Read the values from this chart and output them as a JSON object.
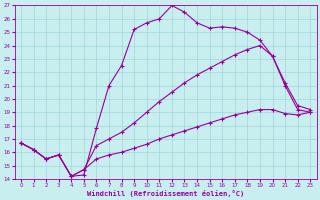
{
  "xlabel": "Windchill (Refroidissement éolien,°C)",
  "bg_color": "#c8eef0",
  "line_color": "#990099",
  "grid_color": "#a0d8d8",
  "xlim": [
    -0.5,
    23.5
  ],
  "ylim": [
    14,
    27
  ],
  "xticks": [
    0,
    1,
    2,
    3,
    4,
    5,
    6,
    7,
    8,
    9,
    10,
    11,
    12,
    13,
    14,
    15,
    16,
    17,
    18,
    19,
    20,
    21,
    22,
    23
  ],
  "yticks": [
    14,
    15,
    16,
    17,
    18,
    19,
    20,
    21,
    22,
    23,
    24,
    25,
    26,
    27
  ],
  "series1_x": [
    0,
    1,
    2,
    3,
    4,
    5,
    6,
    7,
    8,
    9,
    10,
    11,
    12,
    13,
    14,
    15,
    16,
    17,
    18,
    19,
    20,
    21,
    22,
    23
  ],
  "series1_y": [
    16.7,
    16.2,
    15.5,
    15.8,
    14.2,
    14.3,
    17.8,
    21.0,
    22.5,
    25.2,
    25.7,
    26.0,
    27.0,
    26.5,
    25.7,
    25.3,
    25.4,
    25.3,
    25.0,
    24.4,
    23.2,
    21.2,
    19.5,
    19.2
  ],
  "series2_x": [
    0,
    1,
    2,
    3,
    4,
    5,
    6,
    7,
    8,
    9,
    10,
    11,
    12,
    13,
    14,
    15,
    16,
    17,
    18,
    19,
    20,
    21,
    22,
    23
  ],
  "series2_y": [
    16.7,
    16.2,
    15.5,
    15.8,
    14.2,
    14.7,
    16.5,
    17.0,
    17.5,
    18.2,
    19.0,
    19.8,
    20.5,
    21.2,
    21.8,
    22.3,
    22.8,
    23.3,
    23.7,
    24.0,
    23.2,
    21.0,
    19.2,
    19.0
  ],
  "series3_x": [
    0,
    1,
    2,
    3,
    4,
    5,
    6,
    7,
    8,
    9,
    10,
    11,
    12,
    13,
    14,
    15,
    16,
    17,
    18,
    19,
    20,
    21,
    22,
    23
  ],
  "series3_y": [
    16.7,
    16.2,
    15.5,
    15.8,
    14.2,
    14.7,
    15.5,
    15.8,
    16.0,
    16.3,
    16.6,
    17.0,
    17.3,
    17.6,
    17.9,
    18.2,
    18.5,
    18.8,
    19.0,
    19.2,
    19.2,
    18.9,
    18.8,
    19.0
  ]
}
